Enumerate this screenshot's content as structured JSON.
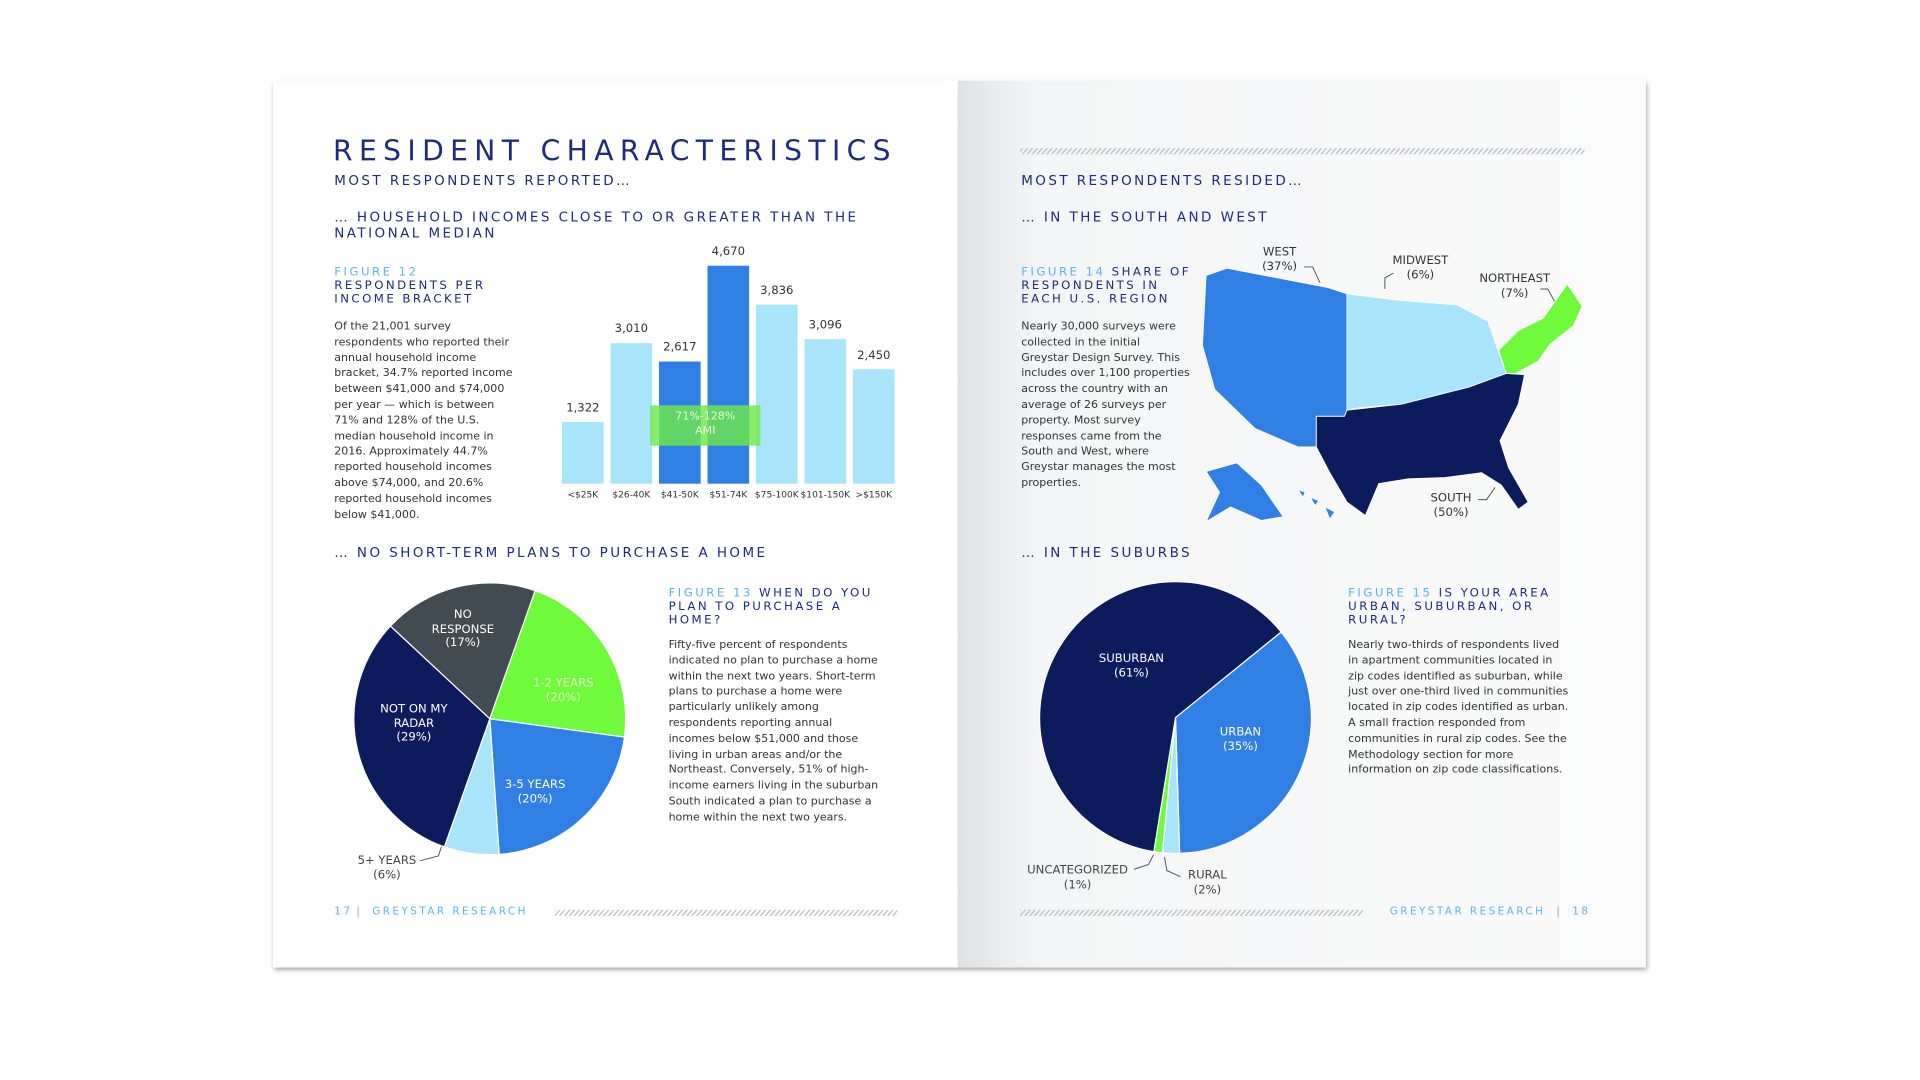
{
  "left_page": {
    "title": "RESIDENT CHARACTERISTICS",
    "subtitle": "MOST RESPONDENTS REPORTED…",
    "section_1": "… HOUSEHOLD INCOMES CLOSE TO OR GREATER THAN THE NATIONAL MEDIAN",
    "section_2": "… NO SHORT-TERM PLANS TO PURCHASE A HOME",
    "page_number": "17",
    "footer_separator": "|",
    "footer_brand": "GREYSTAR RESEARCH"
  },
  "right_page": {
    "subtitle": "MOST RESPONDENTS RESIDED…",
    "section_1": "… IN THE SOUTH AND WEST",
    "section_2": "… IN THE SUBURBS",
    "page_number": "18",
    "footer_separator": "|",
    "footer_brand": "GREYSTAR RESEARCH"
  },
  "chart_data": [
    {
      "type": "bar",
      "figure": "FIGURE 12",
      "title": "RESPONDENTS PER INCOME BRACKET",
      "description": "Of the 21,001 survey respondents who reported their annual household income bracket, 34.7% reported income between $41,000 and $74,000 per year — which is between 71% and 128% of the U.S. median household income in 2016. Approximately 44.7% reported household incomes above $74,000, and 20.6% reported household incomes below $41,000.",
      "categories": [
        "<$25K",
        "$26-40K",
        "$41-50K",
        "$51-74K",
        "$75-100K",
        "$101-150K",
        ">$150K"
      ],
      "values": [
        1322,
        3010,
        2617,
        4670,
        3836,
        3096,
        2450
      ],
      "value_labels": [
        "1,322",
        "3,010",
        "2,617",
        "4,670",
        "3,836",
        "3,096",
        "2,450"
      ],
      "colors": [
        "#a9e5fa",
        "#a9e5fa",
        "#2f7fe4",
        "#2f7fe4",
        "#a9e5fa",
        "#a9e5fa",
        "#a9e5fa"
      ],
      "annotation": "71%-128% AMI",
      "annotation_color": "#6fe84a"
    },
    {
      "type": "pie",
      "figure": "FIGURE 13",
      "title": "WHEN DO YOU PLAN TO PURCHASE A HOME?",
      "description": "Fifty-five percent of respondents indicated no plan to purchase a home within the next two years.  Short-term plans to purchase a home were particularly unlikely among respondents reporting annual incomes below $51,000 and those living in urban areas and/or the Northeast. Conversely, 51% of high-income earners living in the suburban South indicated a plan to purchase a home within the next two years.",
      "categories": [
        "NO RESPONSE",
        "1-2 YEARS",
        "3-5 YEARS",
        "5+ YEARS",
        "NOT ON MY RADAR"
      ],
      "values": [
        17,
        20,
        20,
        6,
        29
      ],
      "value_labels": [
        "(17%)",
        "(20%)",
        "(20%)",
        "(6%)",
        "(29%)"
      ],
      "colors": [
        "#434b52",
        "#6ffa3c",
        "#2f7fe4",
        "#a9e5fa",
        "#0b1b5c"
      ]
    },
    {
      "type": "map",
      "figure": "FIGURE 14",
      "title": "SHARE OF RESPONDENTS IN EACH U.S. REGION",
      "description": "Nearly 30,000 surveys were collected in the initial Greystar Design Survey. This includes over 1,100 properties across the country with an average of 26 surveys per property. Most survey responses came from the South and West, where Greystar manages the most properties.",
      "categories": [
        "WEST",
        "MIDWEST",
        "NORTHEAST",
        "SOUTH"
      ],
      "values": [
        37,
        6,
        7,
        50
      ],
      "value_labels": [
        "(37%)",
        "(6%)",
        "(7%)",
        "(50%)"
      ],
      "colors": [
        "#2f7fe4",
        "#a9e5fa",
        "#6ffa3c",
        "#0b1b5c"
      ]
    },
    {
      "type": "pie",
      "figure": "FIGURE 15",
      "title": "IS YOUR AREA URBAN, SUBURBAN, OR RURAL?",
      "description": "Nearly two-thirds of respondents lived in apartment communities located in zip codes identified as suburban, while just over one-third lived in communities located in zip codes identified as urban. A small fraction responded from communities in rural zip codes. See the Methodology section for more information on zip code classifications.",
      "categories": [
        "URBAN",
        "RURAL",
        "UNCATEGORIZED",
        "SUBURBAN"
      ],
      "values": [
        35,
        2,
        1,
        61
      ],
      "value_labels": [
        "(35%)",
        "(2%)",
        "(1%)",
        "(61%)"
      ],
      "colors": [
        "#2f7fe4",
        "#a9e5fa",
        "#6ffa3c",
        "#0b1b5c"
      ]
    }
  ]
}
